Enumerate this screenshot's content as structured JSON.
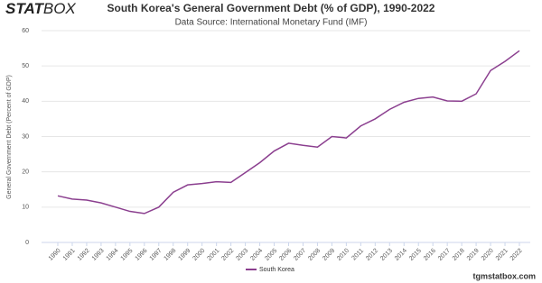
{
  "brand": {
    "logo": [
      "STAT",
      "BOX"
    ],
    "website": "tgmstatbox.com"
  },
  "chart_data": {
    "type": "line",
    "title": "South Korea's General Government Debt (% of GDP), 1990-2022",
    "subtitle": "Data Source: International Monetary Fund (IMF)",
    "y_label": "General Government Debt (Percent of GDP)",
    "categories": [
      "1990",
      "1991",
      "1992",
      "1993",
      "1994",
      "1995",
      "1996",
      "1997",
      "1998",
      "1999",
      "2000",
      "2001",
      "2002",
      "2003",
      "2004",
      "2005",
      "2006",
      "2007",
      "2008",
      "2009",
      "2010",
      "2011",
      "2012",
      "2013",
      "2014",
      "2015",
      "2016",
      "2017",
      "2018",
      "2019",
      "2020",
      "2021",
      "2022"
    ],
    "series": [
      {
        "name": "South Korea",
        "color": "#8b3f8f",
        "values": [
          13.2,
          12.3,
          12.0,
          11.2,
          10.0,
          8.8,
          8.2,
          10.0,
          14.2,
          16.3,
          16.7,
          17.2,
          17.0,
          19.8,
          22.6,
          25.9,
          28.1,
          27.5,
          27.0,
          30.0,
          29.6,
          33.0,
          35.0,
          37.7,
          39.7,
          40.8,
          41.2,
          40.1,
          40.0,
          42.1,
          48.7,
          51.3,
          54.3
        ]
      }
    ],
    "ylim": [
      0,
      60
    ],
    "yticks": [
      0,
      10,
      20,
      30,
      40,
      50,
      60
    ],
    "grid": true,
    "legend": "bottom"
  }
}
